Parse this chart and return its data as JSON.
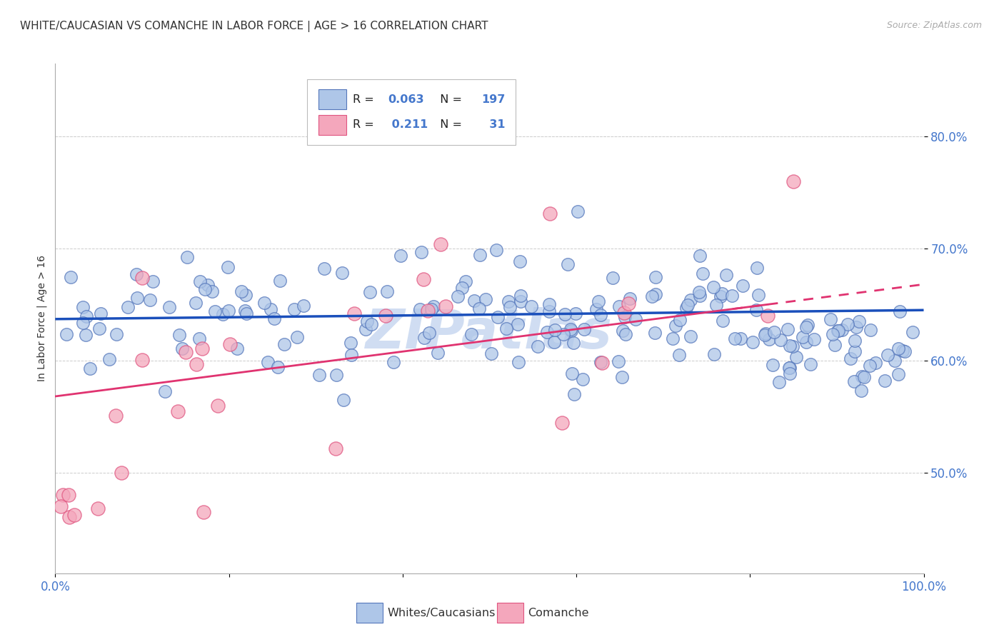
{
  "title": "WHITE/CAUCASIAN VS COMANCHE IN LABOR FORCE | AGE > 16 CORRELATION CHART",
  "source": "Source: ZipAtlas.com",
  "ylabel": "In Labor Force | Age > 16",
  "xlim": [
    0.0,
    1.0
  ],
  "ylim": [
    0.41,
    0.865
  ],
  "yticks": [
    0.5,
    0.6,
    0.7,
    0.8
  ],
  "ytick_labels": [
    "50.0%",
    "60.0%",
    "70.0%",
    "80.0%"
  ],
  "blue_scatter_face": "#aec6e8",
  "blue_scatter_edge": "#5577bb",
  "pink_scatter_face": "#f4a7bc",
  "pink_scatter_edge": "#e05580",
  "blue_line_color": "#1a4fbb",
  "pink_line_color": "#e03370",
  "tick_color": "#4477cc",
  "grid_color": "#cccccc",
  "title_color": "#333333",
  "watermark_text": "ZIPatlas",
  "blue_trend_y0": 0.637,
  "blue_trend_y1": 0.645,
  "pink_trend_y0": 0.568,
  "pink_trend_y1": 0.668,
  "legend_R_label_color": "#333333",
  "legend_value_color": "#4477cc",
  "legend_pink_value_color": "#4477cc",
  "legend_blue_label": "Whites/Caucasians",
  "legend_pink_label": "Comanche"
}
